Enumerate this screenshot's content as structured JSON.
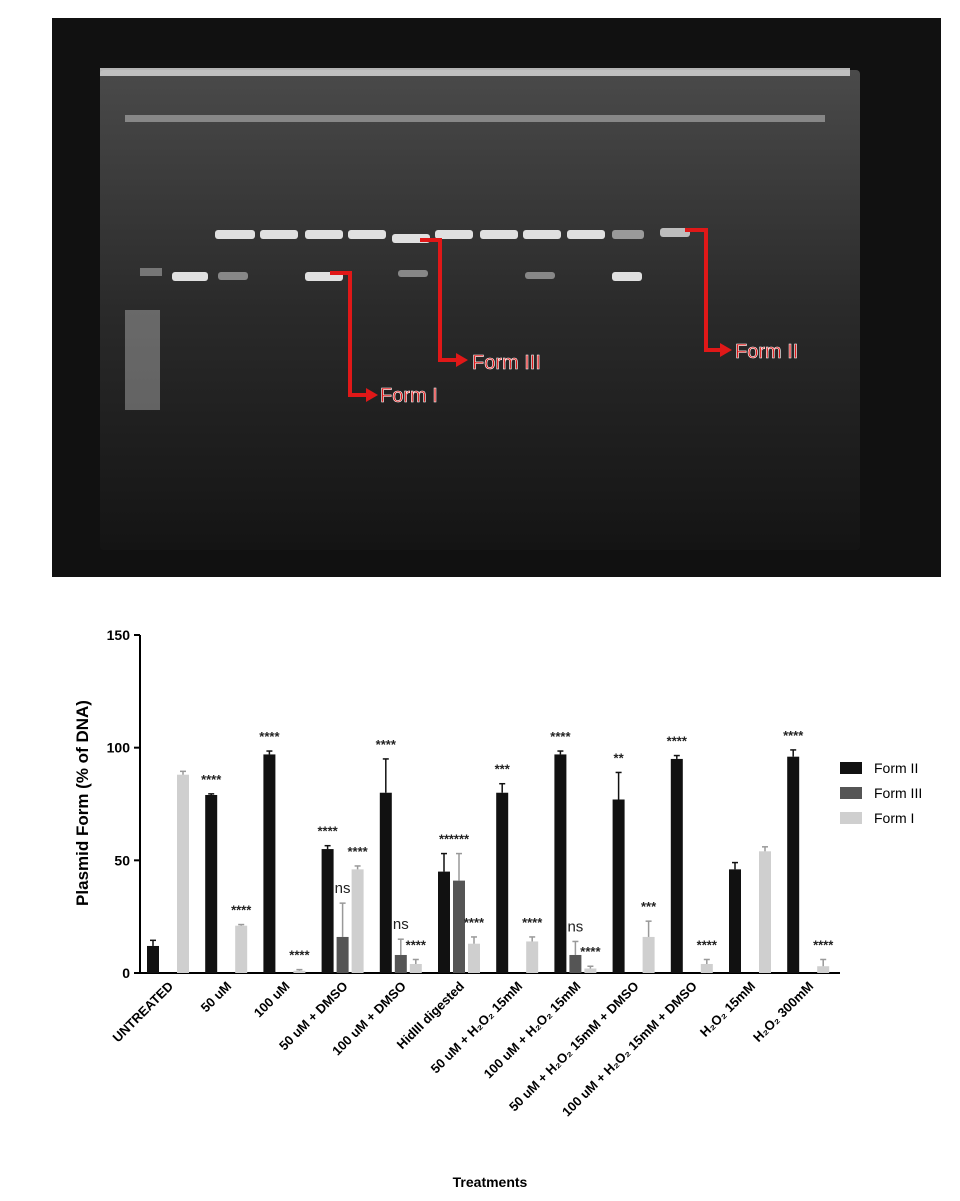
{
  "gel": {
    "labels": [
      "Form I",
      "Form III",
      "Form II"
    ]
  },
  "chart_data": {
    "type": "bar",
    "y_label": "Plasmid Form (% of DNA)",
    "x_label": "Treatments",
    "categories": [
      "UNTREATED",
      "50 uM",
      "100 uM",
      "50 uM + DMSO",
      "100 uM + DMSO",
      "HidIII digested",
      "50 uM + H₂O₂ 15mM",
      "100 uM + H₂O₂ 15mM",
      "50 uM + H₂O₂ 15mM + DMSO",
      "100 uM + H₂O₂ 15mM + DMSO",
      "H₂O₂ 15mM",
      "H₂O₂ 300mM"
    ],
    "series": [
      {
        "name": "Form II",
        "color": "#111111",
        "values": [
          12,
          79,
          97,
          55,
          80,
          45,
          80,
          97,
          77,
          95,
          46,
          96
        ],
        "errors": [
          2.5,
          0.5,
          1.5,
          1.5,
          15,
          8,
          4,
          1.5,
          12,
          1.5,
          3,
          3
        ],
        "labels": [
          null,
          "****",
          "****",
          "****",
          "****",
          "**",
          "***",
          "****",
          "**",
          "****",
          null,
          "****"
        ]
      },
      {
        "name": "Form III",
        "color": "#555555",
        "values": [
          0,
          0,
          0,
          16,
          8,
          41,
          0,
          8,
          0,
          0,
          0,
          0
        ],
        "errors": [
          0,
          0,
          0,
          15,
          7,
          12,
          0,
          6,
          0,
          0,
          0,
          0
        ],
        "labels": [
          null,
          null,
          null,
          "ns",
          "ns",
          "****",
          null,
          "ns",
          null,
          null,
          null,
          null
        ]
      },
      {
        "name": "Form I",
        "color": "#cfcfcf",
        "values": [
          88,
          21,
          1,
          46,
          4,
          13,
          14,
          2,
          16,
          4,
          54,
          3
        ],
        "errors": [
          1.5,
          0.5,
          0.5,
          1.5,
          2,
          3,
          2,
          1,
          7,
          2,
          2,
          3
        ],
        "labels": [
          null,
          "****",
          "****",
          "****",
          "****",
          "****",
          "****",
          "****",
          "***",
          "****",
          null,
          "****"
        ]
      }
    ],
    "ylim": [
      0,
      150
    ],
    "yticks": [
      0,
      50,
      100,
      150
    ],
    "legend": "right"
  }
}
